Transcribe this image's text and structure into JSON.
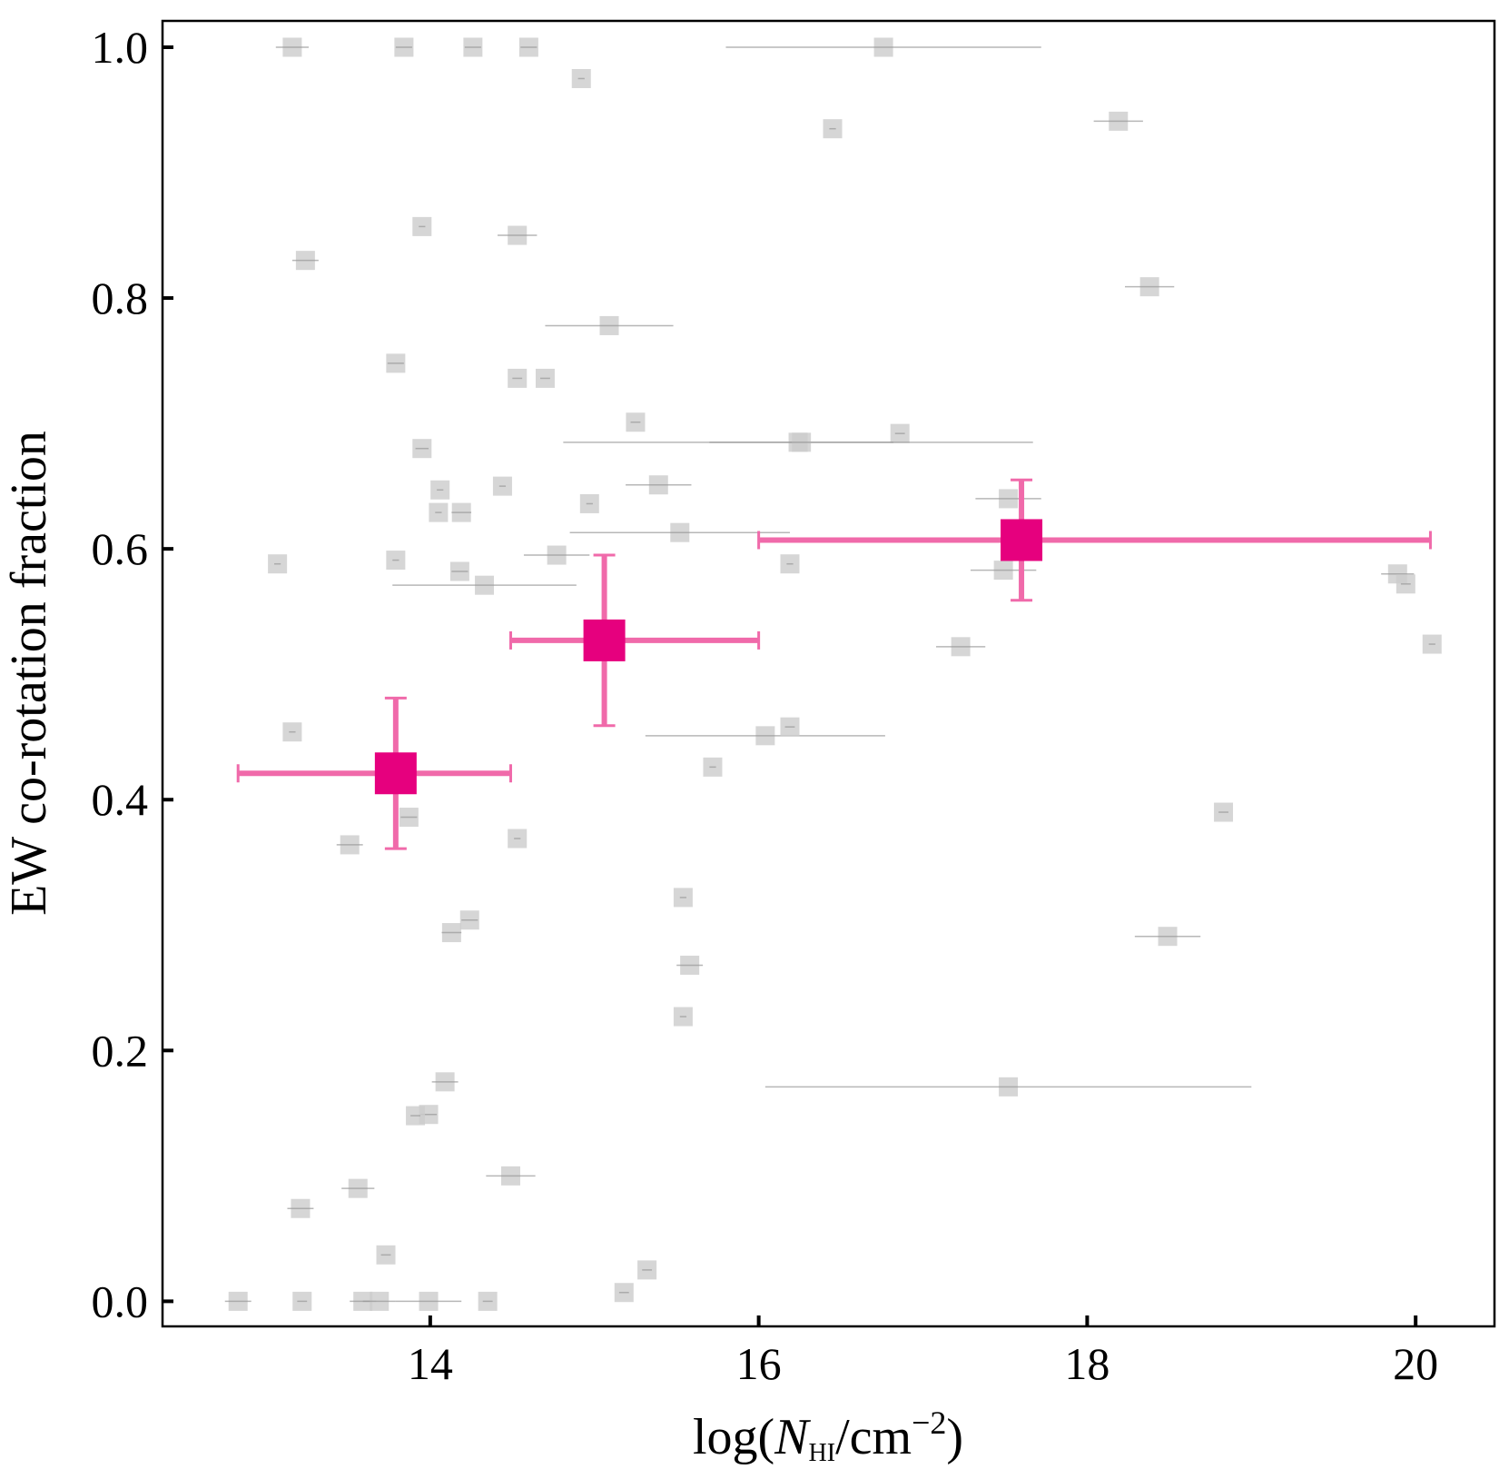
{
  "chart_data": {
    "type": "scatter",
    "x_label": {
      "prefix": "log(",
      "symbol": "N",
      "sub": "HI",
      "mid": "/cm",
      "sup": "−2",
      "suffix": ")"
    },
    "y_label": "EW co-rotation fraction",
    "xlim": [
      12.37,
      20.48
    ],
    "ylim": [
      -0.02,
      1.021
    ],
    "xticks": [
      14,
      16,
      18,
      20
    ],
    "yticks": [
      {
        "value": 0,
        "label": "0.0"
      },
      {
        "value": 0.2,
        "label": "0.2"
      },
      {
        "value": 0.4,
        "label": "0.4"
      },
      {
        "value": 0.6,
        "label": "0.6"
      },
      {
        "value": 0.8,
        "label": "0.8"
      },
      {
        "value": 1,
        "label": "1.0"
      }
    ],
    "series": [
      {
        "color": "#cccccc",
        "error_color": "#999999",
        "x": [
          13.16,
          13.84,
          14.26,
          14.6,
          16.76,
          14.92,
          16.45,
          18.19,
          13.95,
          14.53,
          13.24,
          18.38,
          15.09,
          13.79,
          14.53,
          14.7,
          15.25,
          16.86,
          16.24,
          16.26,
          13.95,
          14.44,
          15.39,
          14.06,
          14.97,
          14.05,
          14.19,
          17.52,
          15.52,
          14.77,
          13.07,
          13.79,
          16.19,
          14.18,
          17.49,
          14.33,
          19.89,
          19.94,
          17.23,
          20.1,
          13.16,
          16.04,
          16.19,
          15.72,
          13.87,
          18.83,
          13.51,
          14.53,
          15.54,
          14.24,
          14.13,
          18.49,
          15.58,
          15.54,
          17.52,
          14.09,
          13.99,
          13.91,
          14.49,
          13.56,
          13.21,
          13.73,
          15.32,
          15.18,
          12.83,
          13.22,
          13.59,
          13.69,
          13.99,
          14.35
        ],
        "values": [
          1.0,
          1.0,
          1.0,
          1.0,
          1.0,
          0.975,
          0.935,
          0.941,
          0.857,
          0.85,
          0.83,
          0.809,
          0.778,
          0.748,
          0.736,
          0.736,
          0.701,
          0.692,
          0.685,
          0.685,
          0.68,
          0.65,
          0.651,
          0.647,
          0.636,
          0.629,
          0.629,
          0.64,
          0.613,
          0.595,
          0.588,
          0.591,
          0.588,
          0.582,
          0.583,
          0.571,
          0.58,
          0.572,
          0.522,
          0.524,
          0.454,
          0.451,
          0.458,
          0.426,
          0.386,
          0.39,
          0.364,
          0.369,
          0.322,
          0.304,
          0.294,
          0.291,
          0.268,
          0.227,
          0.171,
          0.175,
          0.149,
          0.148,
          0.1,
          0.09,
          0.074,
          0.037,
          0.025,
          0.007,
          0.0,
          0.0,
          0.0,
          0.0,
          0.0,
          0.0
        ],
        "xerr": [
          0.1,
          0.05,
          0.05,
          0.05,
          0.96,
          0.02,
          0.02,
          0.15,
          0.02,
          0.12,
          0.08,
          0.15,
          0.39,
          0.05,
          0.03,
          0.03,
          0.03,
          0.03,
          1.43,
          0.56,
          0.04,
          0.02,
          0.2,
          0.02,
          0.02,
          0.02,
          0.06,
          0.2,
          0.67,
          0.2,
          0.02,
          0.02,
          0.02,
          0.05,
          0.2,
          0.56,
          0.1,
          0.03,
          0.15,
          0.02,
          0.02,
          0.73,
          0.03,
          0.02,
          0.05,
          0.03,
          0.08,
          0.02,
          0.02,
          0.05,
          0.06,
          0.2,
          0.08,
          0.02,
          1.48,
          0.08,
          0.05,
          0.03,
          0.15,
          0.1,
          0.08,
          0.03,
          0.03,
          0.03,
          0.08,
          0.03,
          0.08,
          0.1,
          0.2,
          0.03
        ]
      },
      {
        "color": "#e6007e",
        "error_color": "#f06aaa",
        "x": [
          13.79,
          15.06,
          17.6
        ],
        "values": [
          0.421,
          0.527,
          0.607
        ],
        "xerr_minus": [
          0.96,
          0.57,
          1.6
        ],
        "xerr_plus": [
          0.7,
          0.94,
          2.49
        ],
        "yerr": [
          0.06,
          0.068,
          0.048
        ]
      }
    ]
  }
}
